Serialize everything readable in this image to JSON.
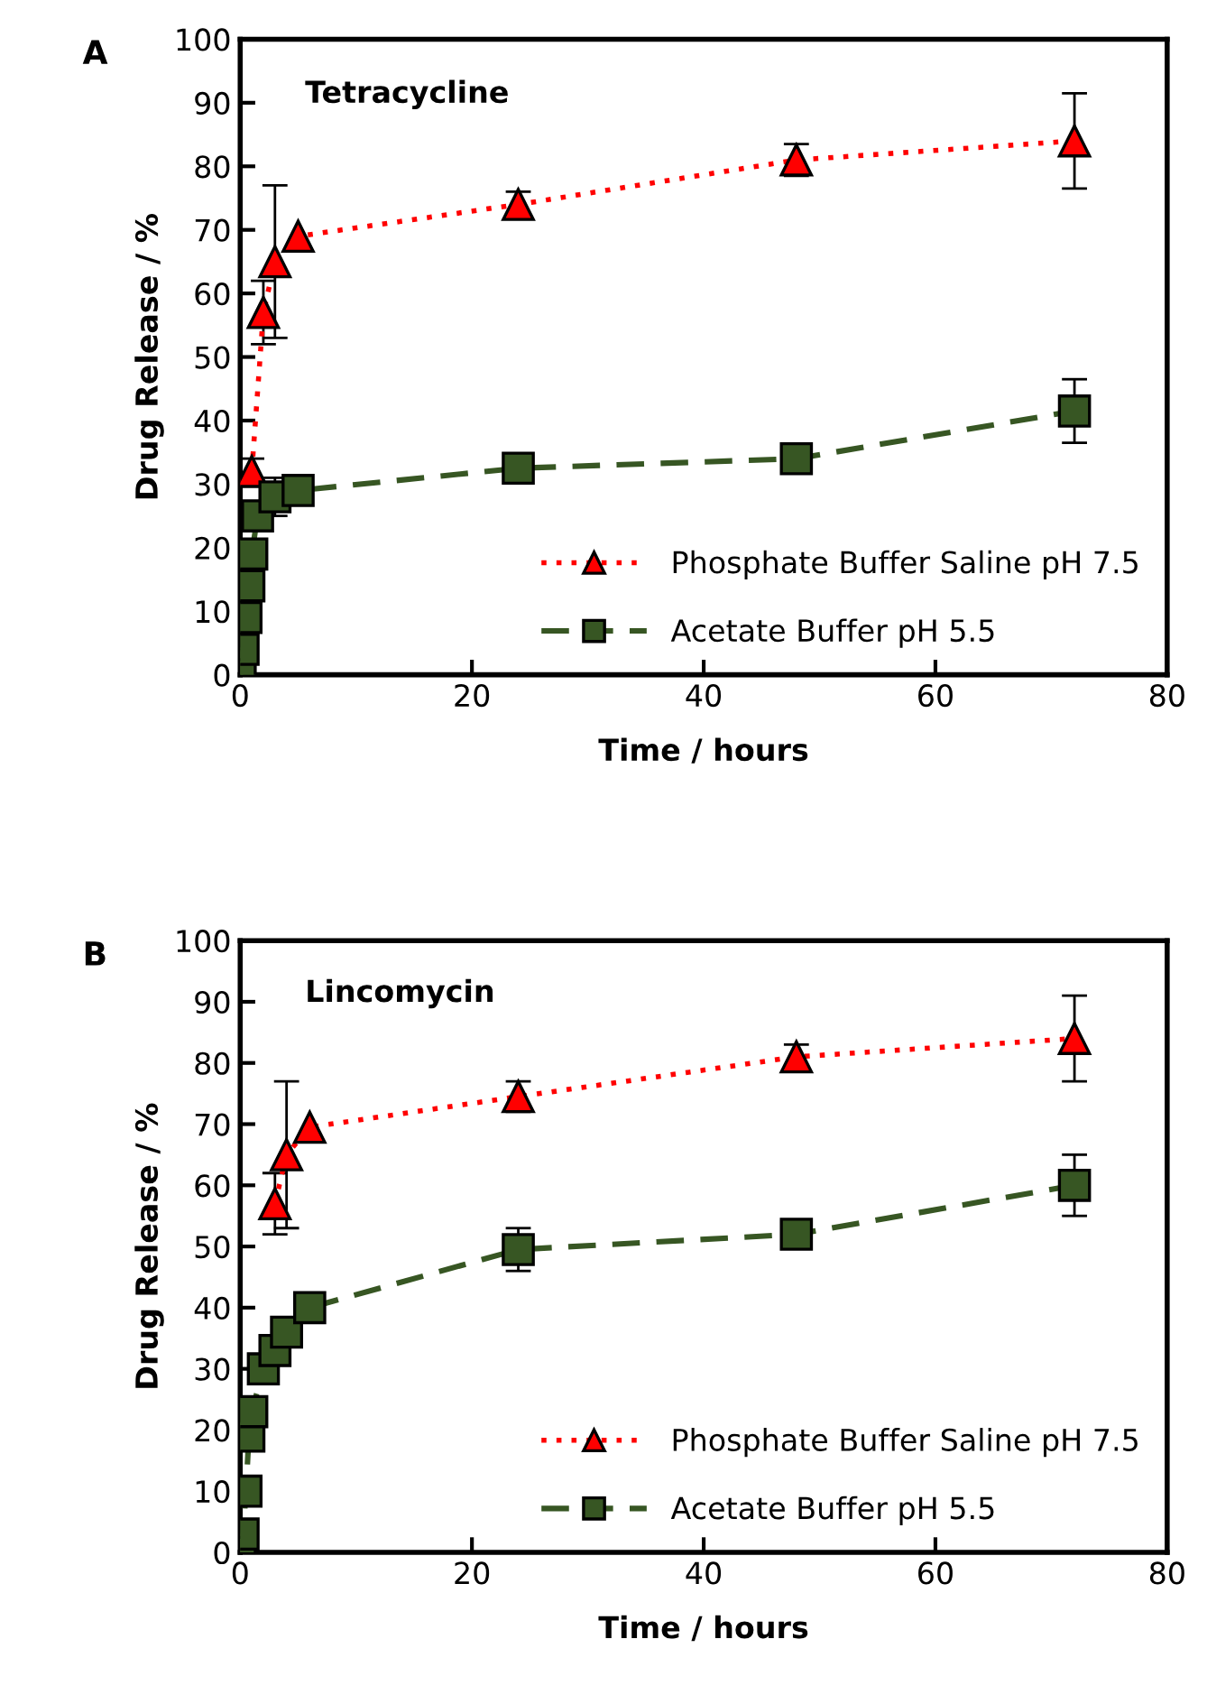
{
  "chart_data": [
    {
      "type": "line",
      "title": "Tetracycline",
      "annotations": [
        "A"
      ],
      "xlabel": "Time / hours",
      "ylabel": "Drug Release / %",
      "xlim": [
        0,
        80
      ],
      "xticks": [
        0,
        20,
        40,
        60,
        80
      ],
      "ylim": [
        0,
        100
      ],
      "yticks": [
        0,
        10,
        20,
        30,
        40,
        50,
        60,
        70,
        80,
        90,
        100
      ],
      "grid": false,
      "legend": "bottom right",
      "series": [
        {
          "name": "Phosphate Buffer Saline pH 7.5",
          "color": "#ff0000",
          "marker": "triangle",
          "line_style": "dotted",
          "x": [
            1,
            2,
            3,
            5,
            24,
            48,
            72
          ],
          "values": [
            32,
            57,
            65,
            69,
            74,
            81,
            84
          ],
          "errors": [
            2,
            5,
            12,
            null,
            2,
            2.5,
            7.5
          ]
        },
        {
          "name": "Acetate Buffer pH 5.5",
          "color": "#375623",
          "marker": "square",
          "line_style": "dashed",
          "x": [
            0,
            0.25,
            0.5,
            0.75,
            1,
            1.5,
            3,
            5,
            24,
            48,
            72
          ],
          "values": [
            0,
            4,
            9,
            14,
            19,
            25,
            28,
            29,
            32.5,
            34,
            41.5
          ],
          "errors": [
            null,
            null,
            null,
            null,
            null,
            null,
            3,
            null,
            null,
            null,
            5
          ]
        }
      ]
    },
    {
      "type": "line",
      "title": "Lincomycin",
      "annotations": [
        "B"
      ],
      "xlabel": "Time / hours",
      "ylabel": "Drug Release / %",
      "xlim": [
        0,
        80
      ],
      "xticks": [
        0,
        20,
        40,
        60,
        80
      ],
      "ylim": [
        0,
        100
      ],
      "yticks": [
        0,
        10,
        20,
        30,
        40,
        50,
        60,
        70,
        80,
        90,
        100
      ],
      "grid": false,
      "legend": "bottom right",
      "series": [
        {
          "name": "Phosphate Buffer Saline pH 7.5",
          "color": "#ff0000",
          "marker": "triangle",
          "line_style": "dotted",
          "x": [
            3,
            4,
            6,
            24,
            48,
            72
          ],
          "values": [
            57,
            65,
            69.5,
            74.5,
            81,
            84
          ],
          "errors": [
            5,
            12,
            null,
            2.5,
            2,
            7
          ]
        },
        {
          "name": "Acetate Buffer pH 5.5",
          "color": "#375623",
          "marker": "square",
          "line_style": "dashed",
          "x": [
            0,
            0.25,
            0.5,
            0.75,
            1,
            2,
            3,
            4,
            6,
            24,
            48,
            72
          ],
          "values": [
            0,
            3,
            10,
            19,
            23,
            30,
            33,
            36,
            40,
            49.5,
            52,
            60
          ],
          "errors": [
            null,
            null,
            null,
            null,
            null,
            null,
            null,
            null,
            null,
            3.5,
            null,
            5
          ]
        }
      ]
    }
  ]
}
